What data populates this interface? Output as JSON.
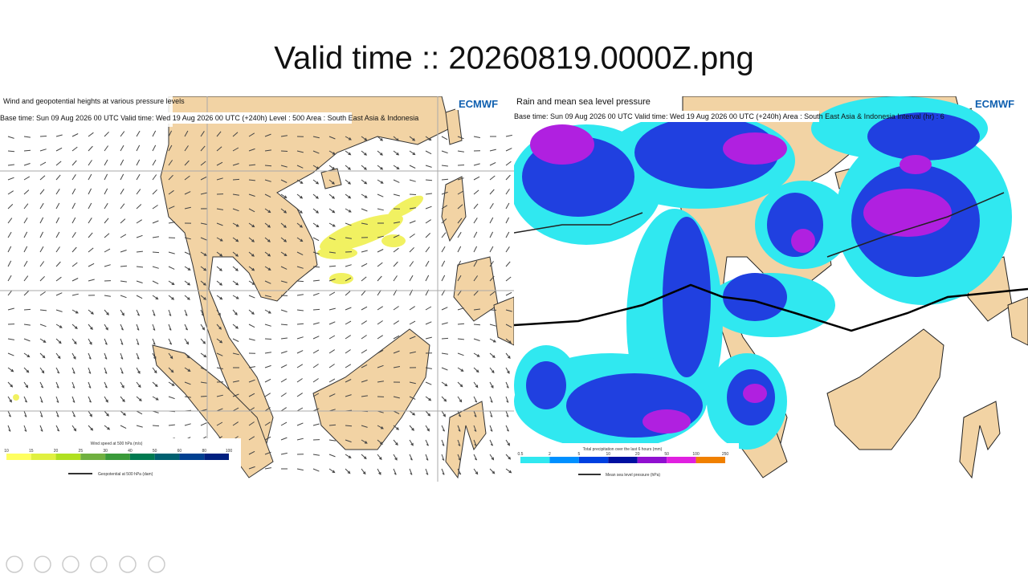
{
  "slide": {
    "title": "Valid time :: 20260819.0000Z.png"
  },
  "left_map": {
    "title": "Wind and geopotential heights at various pressure levels",
    "subtitle": "Base time: Sun 09 Aug 2026 00 UTC Valid time: Wed 19 Aug 2026 00 UTC (+240h) Level : 500 Area : South East Asia & Indonesia",
    "logo": "ECMWF",
    "legend_title": "Wind speed at 500 hPa (m/s)",
    "legend_ticks": [
      "10",
      "15",
      "20",
      "25",
      "30",
      "40",
      "50",
      "60",
      "80",
      "100"
    ],
    "line_legend": "Geopotential at 500 hPa (dam)"
  },
  "right_map": {
    "title": "Rain and mean sea level pressure",
    "subtitle": "Base time: Sun 09 Aug 2026 00 UTC Valid time: Wed 19 Aug 2026 00 UTC (+240h) Area : South East Asia & Indonesia Interval (hr) : 6",
    "logo": "ECMWF",
    "legend_title": "Total precipitation over the last 6 hours (mm)",
    "legend_ticks": [
      "0.5",
      "2",
      "5",
      "10",
      "20",
      "50",
      "100",
      "250"
    ],
    "line_legend": "Mean sea level pressure (hPa)"
  }
}
